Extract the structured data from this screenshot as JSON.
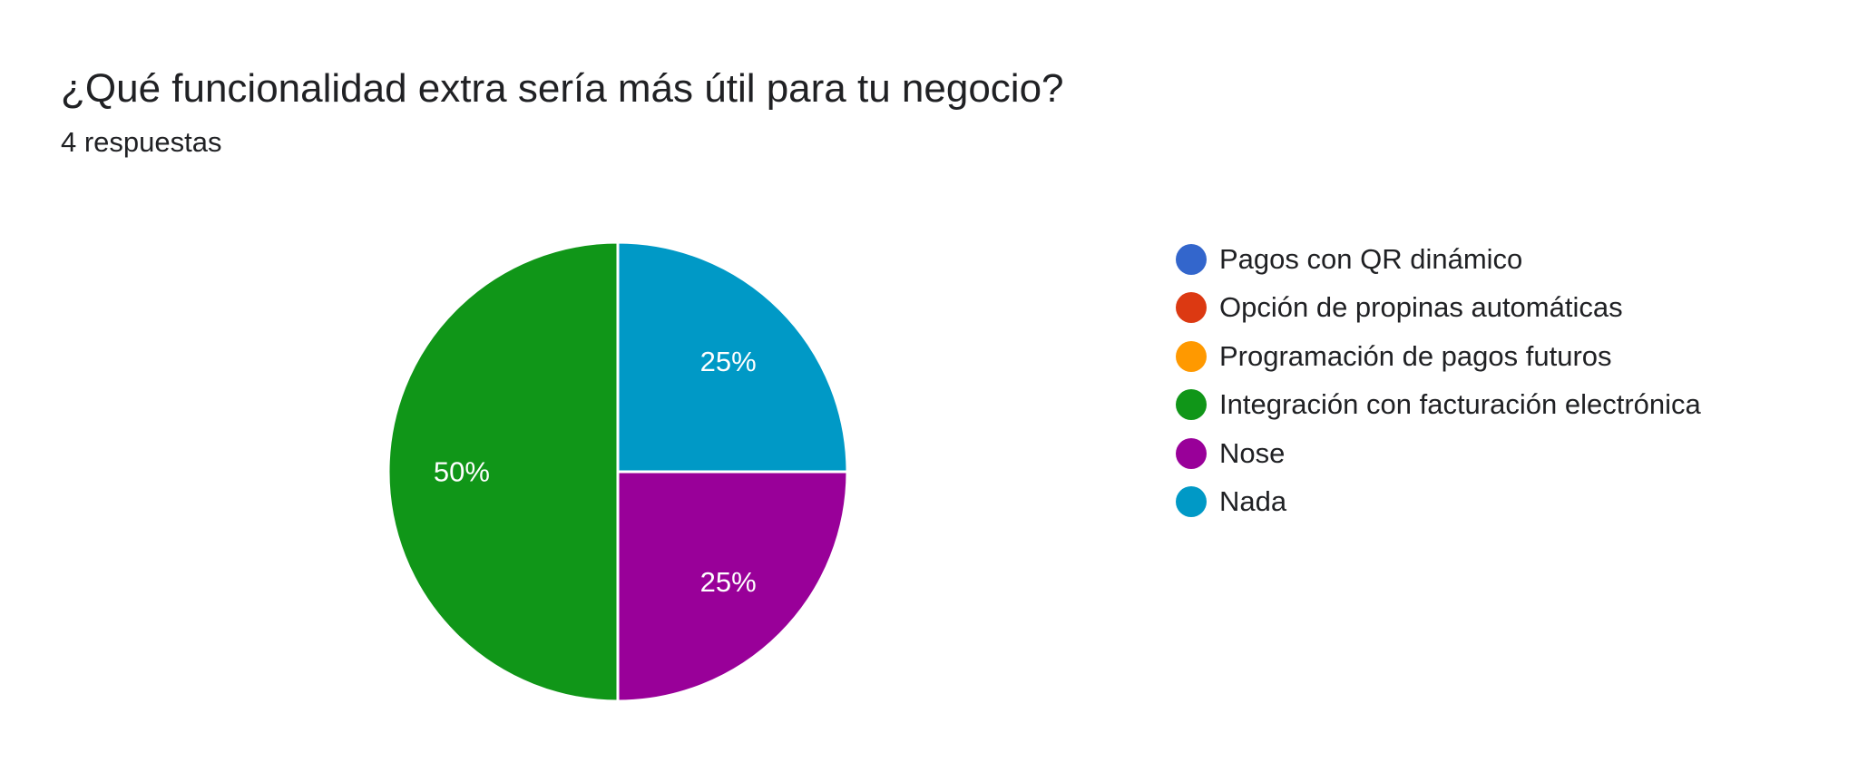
{
  "header": {
    "title": "¿Qué funcionalidad extra sería más útil para tu negocio?",
    "subtitle": "4 respuestas"
  },
  "chart_data": {
    "type": "pie",
    "title": "¿Qué funcionalidad extra sería más útil para tu negocio?",
    "subtitle": "4 respuestas",
    "legend_position": "right",
    "slices": [
      {
        "label": "Pagos con QR dinámico",
        "value": 0,
        "percent": "0%",
        "color": "#3366cc"
      },
      {
        "label": "Opción de propinas automáticas",
        "value": 0,
        "percent": "0%",
        "color": "#dc3912"
      },
      {
        "label": "Programación de pagos futuros",
        "value": 0,
        "percent": "0%",
        "color": "#ff9900"
      },
      {
        "label": "Integración con facturación electrónica",
        "value": 2,
        "percent": "50%",
        "color": "#109618"
      },
      {
        "label": "Nose",
        "value": 1,
        "percent": "25%",
        "color": "#990099"
      },
      {
        "label": "Nada",
        "value": 1,
        "percent": "25%",
        "color": "#0099c6"
      }
    ]
  }
}
